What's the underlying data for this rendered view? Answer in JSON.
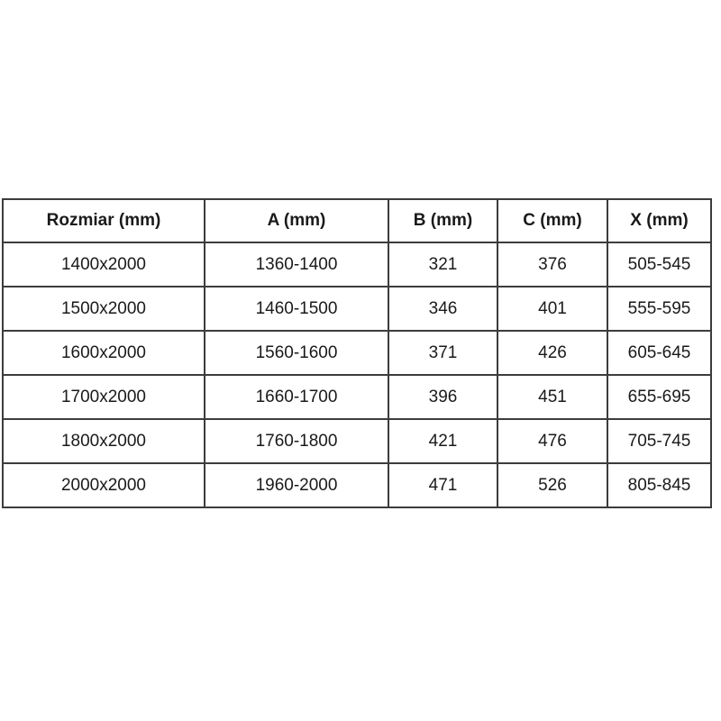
{
  "chart_data": {
    "type": "table",
    "title": "",
    "columns": [
      "Rozmiar (mm)",
      "A (mm)",
      "B (mm)",
      "C (mm)",
      "X (mm)"
    ],
    "rows": [
      [
        "1400x2000",
        "1360-1400",
        "321",
        "376",
        "505-545"
      ],
      [
        "1500x2000",
        "1460-1500",
        "346",
        "401",
        "555-595"
      ],
      [
        "1600x2000",
        "1560-1600",
        "371",
        "426",
        "605-645"
      ],
      [
        "1700x2000",
        "1660-1700",
        "396",
        "451",
        "655-695"
      ],
      [
        "1800x2000",
        "1760-1800",
        "421",
        "476",
        "705-745"
      ],
      [
        "2000x2000",
        "1960-2000",
        "471",
        "526",
        "805-845"
      ]
    ],
    "layout": {
      "grid": "full-borders",
      "header_style": "bold",
      "cell_alignment": "center"
    }
  },
  "styles": {
    "border_color": "#3c3c3c",
    "text_color": "#1a1a1a",
    "background_color": "#ffffff"
  }
}
